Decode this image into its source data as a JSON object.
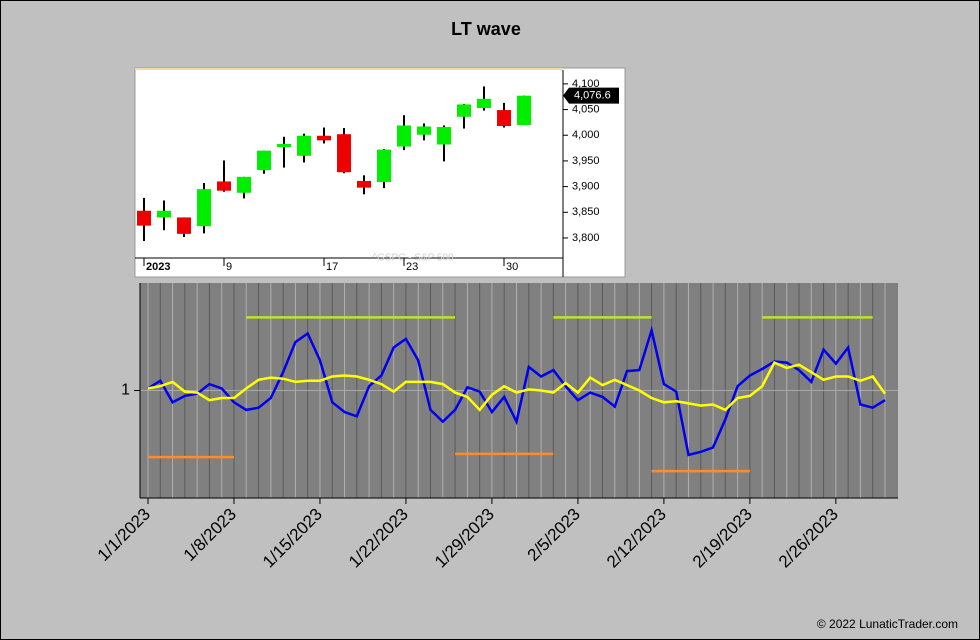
{
  "title": "LT wave",
  "copyright": "© 2022 LunaticTrader.com",
  "chart_data": [
    {
      "type": "candlestick",
      "watermark": "^GSPC - S&P 500",
      "price_tag": "4,076.6",
      "categories": [
        "2023",
        null,
        null,
        null,
        "9",
        null,
        null,
        null,
        null,
        "17",
        null,
        null,
        null,
        "23",
        null,
        null,
        null,
        null,
        "30",
        null
      ],
      "open": [
        3853,
        3840,
        3840,
        3823,
        3910,
        3888,
        3932,
        3977,
        3960,
        3999,
        4002,
        3911,
        3909,
        3978,
        4001,
        3982,
        4036,
        4053,
        4049,
        4020
      ],
      "high": [
        3878,
        3873,
        3840,
        3907,
        3951,
        3919,
        3970,
        3997,
        4003,
        4015,
        4014,
        3922,
        3973,
        4039,
        4023,
        4019,
        4061,
        4095,
        4063,
        4077
      ],
      "low": [
        3794,
        3815,
        3802,
        3809,
        3890,
        3877,
        3925,
        3937,
        3947,
        3984,
        3926,
        3885,
        3897,
        3971,
        3990,
        3949,
        4013,
        4048,
        4015,
        4020
      ],
      "close": [
        3824,
        3853,
        3808,
        3895,
        3892,
        3919,
        3970,
        3983,
        3999,
        3990,
        3928,
        3898,
        3972,
        4019,
        4017,
        4016,
        4060,
        4071,
        4018,
        4077
      ],
      "up_color": "#00ee00",
      "down_color": "#ee0000",
      "ylim": [
        3761,
        4127
      ],
      "yticks": [
        {
          "value": 3800,
          "label": "3,800"
        },
        {
          "value": 3850,
          "label": "3,850"
        },
        {
          "value": 3900,
          "label": "3,900"
        },
        {
          "value": 3950,
          "label": "3,950"
        },
        {
          "value": 4000,
          "label": "4,000"
        },
        {
          "value": 4050,
          "label": "4,050"
        },
        {
          "value": 4100,
          "label": "4,100"
        }
      ]
    },
    {
      "type": "line",
      "x": [
        "1/1/2023",
        "1/2/2023",
        "1/3/2023",
        "1/4/2023",
        "1/5/2023",
        "1/6/2023",
        "1/7/2023",
        "1/8/2023",
        "1/9/2023",
        "1/10/2023",
        "1/11/2023",
        "1/12/2023",
        "1/13/2023",
        "1/14/2023",
        "1/15/2023",
        "1/16/2023",
        "1/17/2023",
        "1/18/2023",
        "1/19/2023",
        "1/20/2023",
        "1/21/2023",
        "1/22/2023",
        "1/23/2023",
        "1/24/2023",
        "1/25/2023",
        "1/26/2023",
        "1/27/2023",
        "1/28/2023",
        "1/29/2023",
        "1/30/2023",
        "1/31/2023",
        "2/1/2023",
        "2/2/2023",
        "2/3/2023",
        "2/4/2023",
        "2/5/2023",
        "2/6/2023",
        "2/7/2023",
        "2/8/2023",
        "2/9/2023",
        "2/10/2023",
        "2/11/2023",
        "2/12/2023",
        "2/13/2023",
        "2/14/2023",
        "2/15/2023",
        "2/16/2023",
        "2/17/2023",
        "2/18/2023",
        "2/19/2023",
        "2/20/2023",
        "2/21/2023",
        "2/22/2023",
        "2/23/2023",
        "2/24/2023",
        "2/25/2023",
        "2/26/2023",
        "2/27/2023",
        "2/28/2023",
        "3/1/2023",
        "3/2/2023"
      ],
      "series": [
        {
          "color": "#0000ee",
          "values": [
            1.02,
            1.09,
            0.89,
            0.95,
            0.97,
            1.06,
            1.02,
            0.89,
            0.82,
            0.84,
            0.93,
            1.17,
            1.45,
            1.53,
            1.28,
            0.89,
            0.8,
            0.76,
            1.04,
            1.14,
            1.4,
            1.48,
            1.28,
            0.82,
            0.71,
            0.82,
            1.03,
            0.99,
            0.8,
            0.94,
            0.71,
            1.22,
            1.13,
            1.19,
            1.04,
            0.91,
            0.98,
            0.94,
            0.85,
            1.18,
            1.19,
            1.56,
            1.06,
            0.99,
            0.4,
            0.43,
            0.47,
            0.73,
            1.04,
            1.14,
            1.2,
            1.27,
            1.26,
            1.19,
            1.08,
            1.38,
            1.25,
            1.4,
            0.87,
            0.84,
            0.91
          ]
        },
        {
          "color": "#ffff00",
          "values": [
            1.02,
            1.04,
            1.08,
            0.99,
            0.98,
            0.91,
            0.93,
            0.93,
            1.02,
            1.1,
            1.12,
            1.11,
            1.08,
            1.09,
            1.09,
            1.13,
            1.14,
            1.13,
            1.1,
            1.06,
            0.99,
            1.08,
            1.08,
            1.08,
            1.06,
            0.98,
            0.94,
            0.82,
            0.96,
            1.04,
            0.98,
            1.01,
            1.0,
            0.98,
            1.07,
            0.98,
            1.12,
            1.05,
            1.1,
            1.05,
            1.0,
            0.93,
            0.89,
            0.9,
            0.88,
            0.86,
            0.87,
            0.82,
            0.93,
            0.95,
            1.04,
            1.26,
            1.21,
            1.24,
            1.17,
            1.1,
            1.13,
            1.13,
            1.09,
            1.13,
            0.97
          ]
        }
      ],
      "levels": [
        {
          "start": "1/1/2023",
          "end": "1/8/2023",
          "value": 0.38,
          "color": "#ff8c2a"
        },
        {
          "start": "1/9/2023",
          "end": "1/26/2023",
          "value": 1.68,
          "color": "#b8e62a"
        },
        {
          "start": "1/26/2023",
          "end": "2/3/2023",
          "value": 0.41,
          "color": "#ff8c2a"
        },
        {
          "start": "2/3/2023",
          "end": "2/11/2023",
          "value": 1.68,
          "color": "#b8e62a"
        },
        {
          "start": "2/11/2023",
          "end": "2/19/2023",
          "value": 0.25,
          "color": "#ff8c2a"
        },
        {
          "start": "2/20/2023",
          "end": "3/1/2023",
          "value": 1.68,
          "color": "#b8e62a"
        }
      ],
      "xlim": [
        "1/1/2023",
        "3/2/2023"
      ],
      "xticks": [
        "1/1/2023",
        "1/8/2023",
        "1/15/2023",
        "1/22/2023",
        "1/29/2023",
        "2/5/2023",
        "2/12/2023",
        "2/19/2023",
        "2/26/2023"
      ],
      "ylim": [
        0,
        2
      ],
      "yticks": [
        1
      ]
    }
  ]
}
